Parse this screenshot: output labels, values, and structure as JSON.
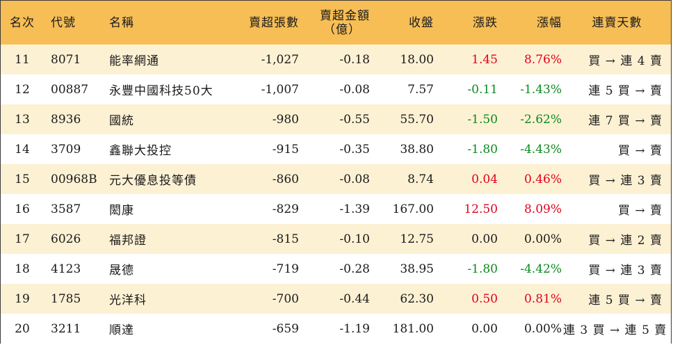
{
  "header": {
    "rank": "名次",
    "code": "代號",
    "name": "名稱",
    "net_sell_volume": "賣超張數",
    "net_sell_amount_line1": "賣超金額",
    "net_sell_amount_line2": "（億）",
    "close": "收盤",
    "change": "漲跌",
    "change_pct": "漲幅",
    "streak": "連賣天數"
  },
  "colors": {
    "header_bg": "#f7be56",
    "odd_row_bg": "#fdf1d4",
    "up": "#e0001b",
    "down": "#0a8a1e"
  },
  "rows": [
    {
      "rank": "11",
      "code": "8071",
      "name": "能率網通",
      "volume": "-1,027",
      "amount": "-0.18",
      "close": "18.00",
      "change": "1.45",
      "pct": "8.76%",
      "trend": "up",
      "streak": "買 → 連 4 賣"
    },
    {
      "rank": "12",
      "code": "00887",
      "name": "永豐中國科技50大",
      "volume": "-1,007",
      "amount": "-0.08",
      "close": "7.57",
      "change": "-0.11",
      "pct": "-1.43%",
      "trend": "down",
      "streak": "連 5 買 → 賣"
    },
    {
      "rank": "13",
      "code": "8936",
      "name": "國統",
      "volume": "-980",
      "amount": "-0.55",
      "close": "55.70",
      "change": "-1.50",
      "pct": "-2.62%",
      "trend": "down",
      "streak": "連 7 買 → 賣"
    },
    {
      "rank": "14",
      "code": "3709",
      "name": "鑫聯大投控",
      "volume": "-915",
      "amount": "-0.35",
      "close": "38.80",
      "change": "-1.80",
      "pct": "-4.43%",
      "trend": "down",
      "streak": "買 → 賣"
    },
    {
      "rank": "15",
      "code": "00968B",
      "name": "元大優息投等債",
      "volume": "-860",
      "amount": "-0.08",
      "close": "8.74",
      "change": "0.04",
      "pct": "0.46%",
      "trend": "up",
      "streak": "買 → 連 3 賣"
    },
    {
      "rank": "16",
      "code": "3587",
      "name": "閎康",
      "volume": "-829",
      "amount": "-1.39",
      "close": "167.00",
      "change": "12.50",
      "pct": "8.09%",
      "trend": "up",
      "streak": "買 → 賣"
    },
    {
      "rank": "17",
      "code": "6026",
      "name": "福邦證",
      "volume": "-815",
      "amount": "-0.10",
      "close": "12.75",
      "change": "0.00",
      "pct": "0.00%",
      "trend": "flat",
      "streak": "買 → 連 2 賣"
    },
    {
      "rank": "18",
      "code": "4123",
      "name": "晟德",
      "volume": "-719",
      "amount": "-0.28",
      "close": "38.95",
      "change": "-1.80",
      "pct": "-4.42%",
      "trend": "down",
      "streak": "買 → 連 3 賣"
    },
    {
      "rank": "19",
      "code": "1785",
      "name": "光洋科",
      "volume": "-700",
      "amount": "-0.44",
      "close": "62.30",
      "change": "0.50",
      "pct": "0.81%",
      "trend": "up",
      "streak": "連 5 買 → 賣"
    },
    {
      "rank": "20",
      "code": "3211",
      "name": "順達",
      "volume": "-659",
      "amount": "-1.19",
      "close": "181.00",
      "change": "0.00",
      "pct": "0.00%",
      "trend": "flat",
      "streak": "連 3 買 → 連 5 賣"
    }
  ]
}
